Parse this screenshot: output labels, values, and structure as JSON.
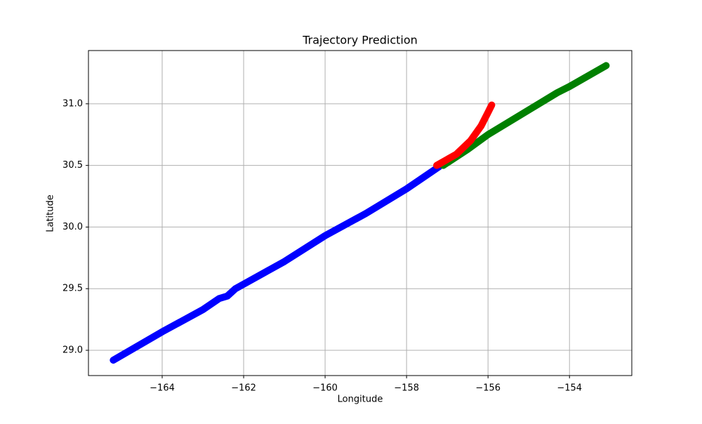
{
  "chart_data": {
    "type": "line",
    "title": "Trajectory Prediction",
    "x_label": "Longitude",
    "y_label": "Latitude",
    "grid": true,
    "xlim": [
      -165.81,
      -152.47
    ],
    "ylim": [
      28.795,
      31.432
    ],
    "xticks": [
      {
        "value": -164,
        "label": "−164"
      },
      {
        "value": -162,
        "label": "−162"
      },
      {
        "value": -160,
        "label": "−160"
      },
      {
        "value": -158,
        "label": "−158"
      },
      {
        "value": -156,
        "label": "−156"
      },
      {
        "value": -154,
        "label": "−154"
      }
    ],
    "yticks": [
      {
        "value": 29,
        "label": "29.0"
      },
      {
        "value": 29.5,
        "label": "29.5"
      },
      {
        "value": 30,
        "label": "30.0"
      },
      {
        "value": 30.5,
        "label": "30.5"
      },
      {
        "value": 31,
        "label": "31.0"
      }
    ],
    "series": [
      {
        "color": "#0000ff",
        "x": [
          -165.2,
          -164.0,
          -163.0,
          -162.6,
          -162.4,
          -162.2,
          -161.0,
          -160.0,
          -159.0,
          -158.0,
          -157.2
        ],
        "values": [
          28.92,
          29.15,
          29.33,
          29.42,
          29.44,
          29.5,
          29.72,
          29.93,
          30.11,
          30.31,
          30.49
        ]
      },
      {
        "color": "#008000",
        "x": [
          -157.1,
          -156.5,
          -156.0,
          -155.0,
          -154.3,
          -154.0,
          -153.1
        ],
        "values": [
          30.5,
          30.63,
          30.75,
          30.95,
          31.09,
          31.14,
          31.31
        ]
      },
      {
        "color": "#ff0000",
        "x": [
          -157.26,
          -156.78,
          -156.43,
          -156.17,
          -156.0,
          -155.91
        ],
        "values": [
          30.5,
          30.59,
          30.7,
          30.82,
          30.93,
          30.99
        ]
      }
    ]
  }
}
